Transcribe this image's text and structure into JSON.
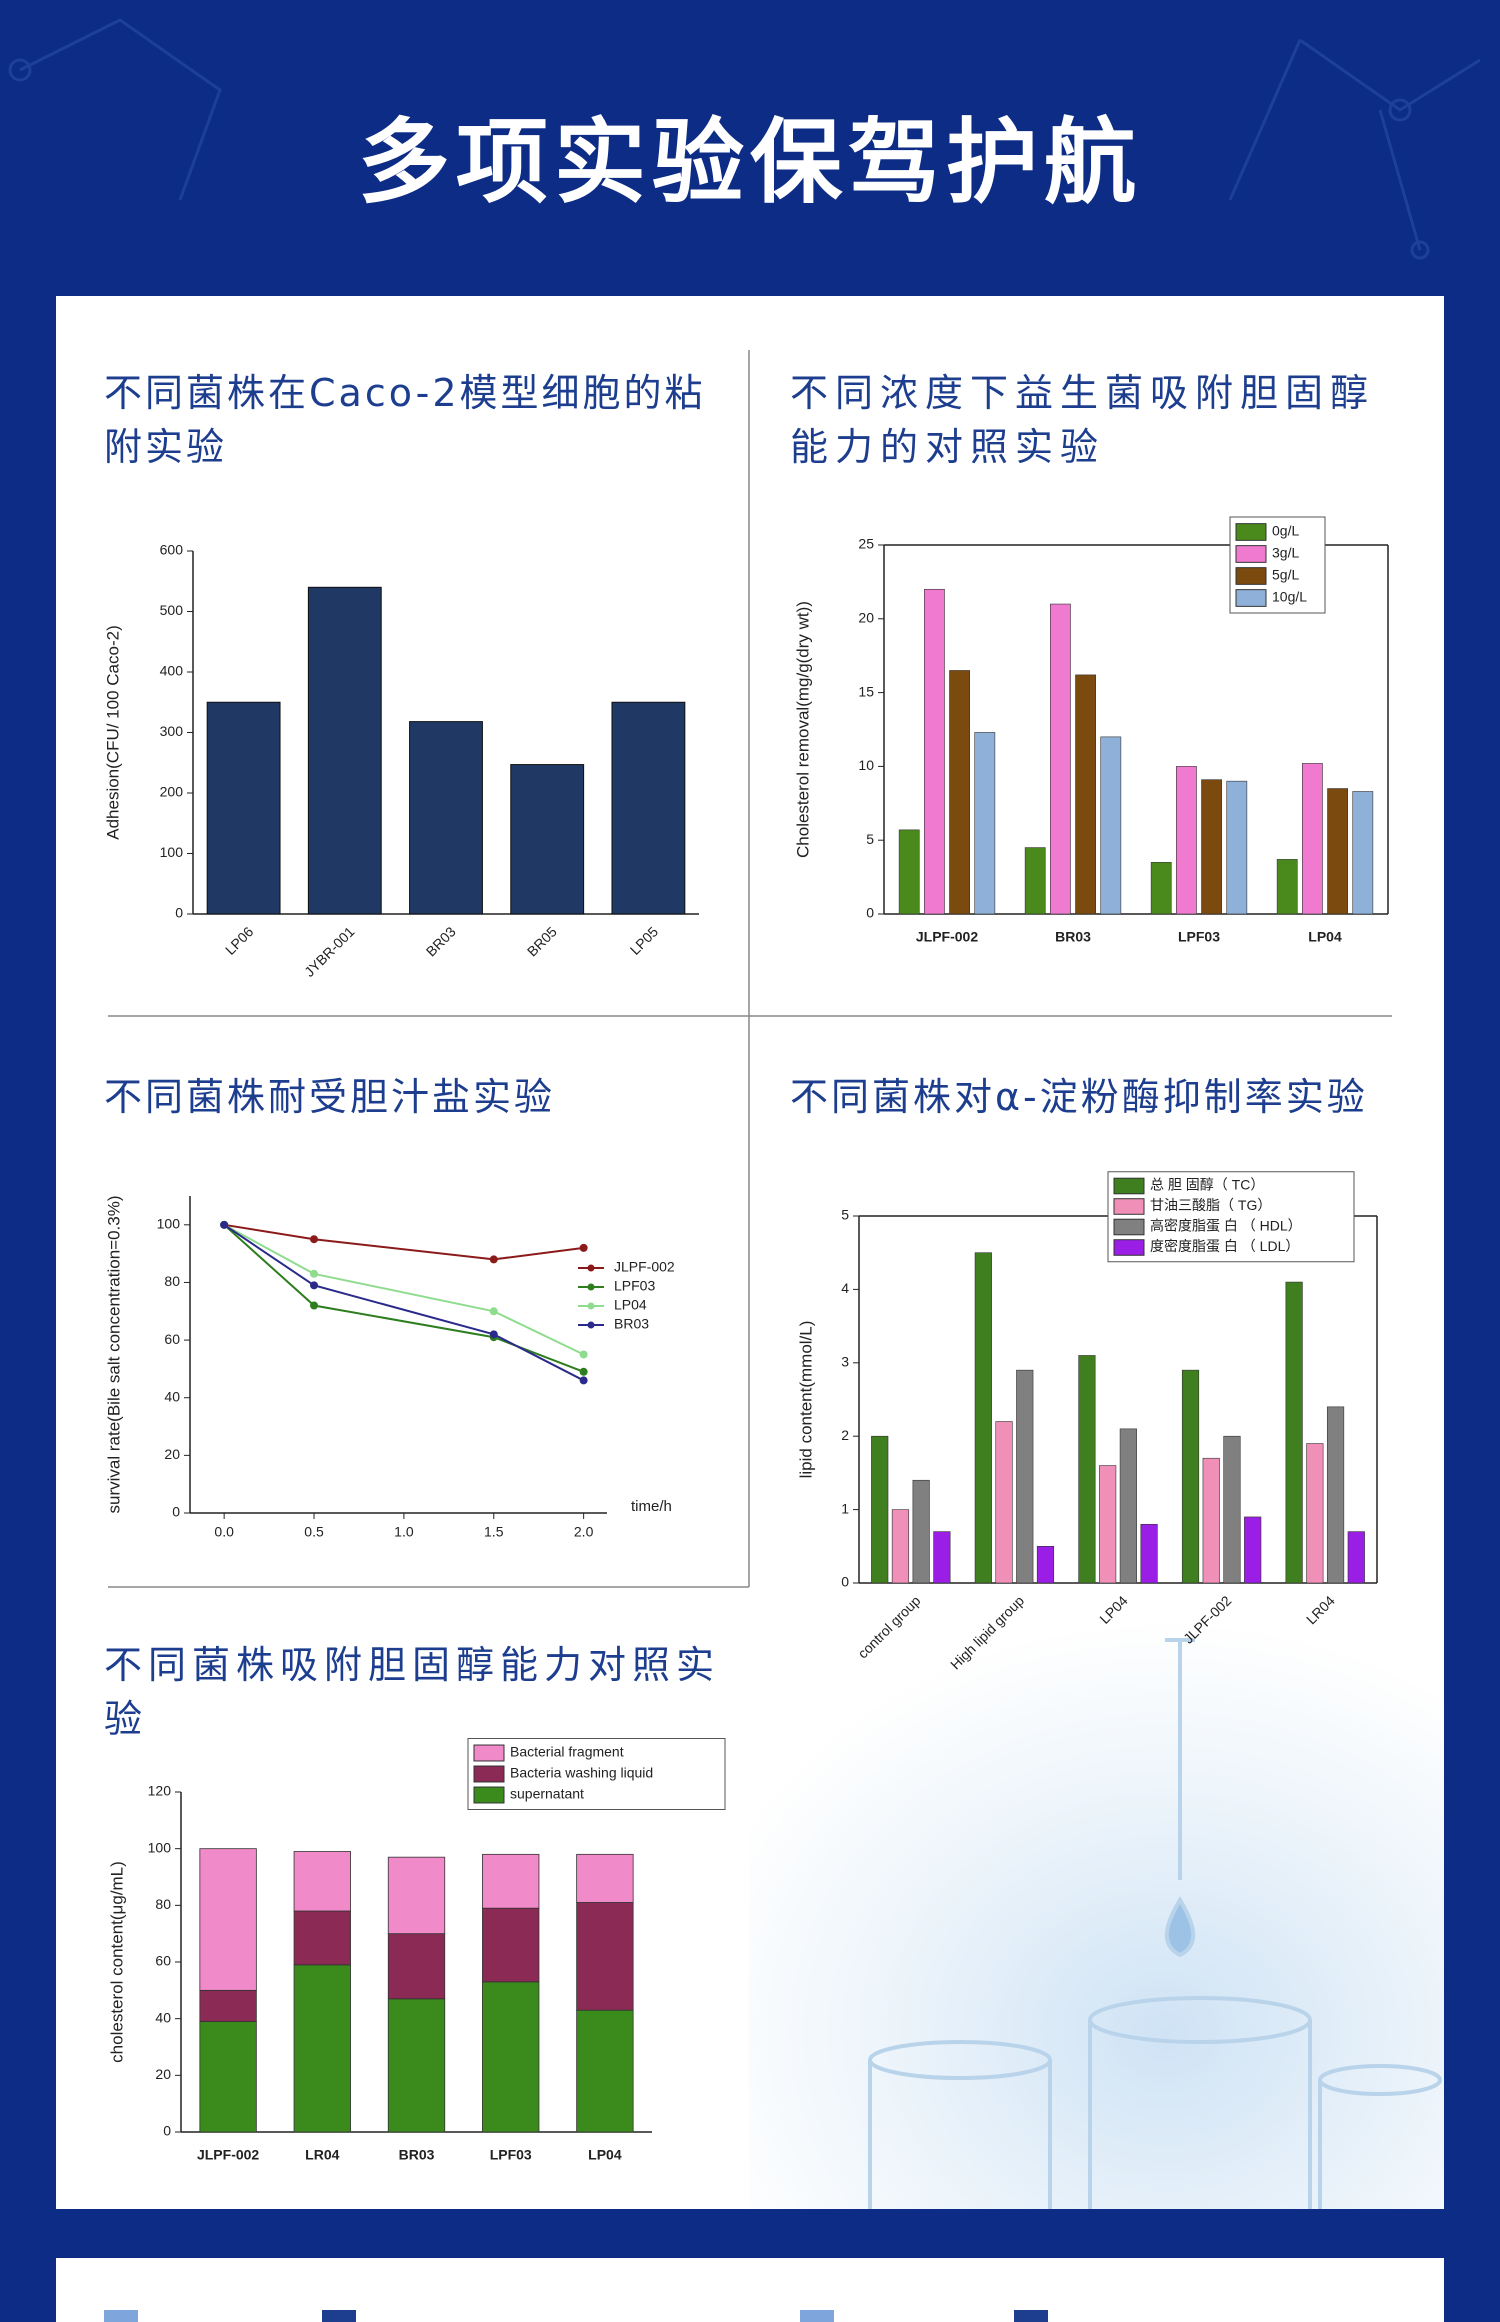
{
  "header": {
    "title": "多项实验保驾护航"
  },
  "chart_data": [
    {
      "type": "bar",
      "title": "不同菌株在Caco-2模型细胞的粘附实验",
      "ylabel": "Adhesion(CFU/ 100 Caco-2)",
      "categories": [
        "LP06",
        "JYBR-001",
        "BR03",
        "BR05",
        "LP05"
      ],
      "values": [
        350,
        540,
        318,
        247,
        350
      ],
      "color": "#1f3864",
      "ylim": [
        0,
        600
      ],
      "yticks": [
        0,
        100,
        200,
        300,
        400,
        500,
        600
      ]
    },
    {
      "type": "grouped",
      "title": "不同浓度下益生菌吸附胆固醇能力的对照实验",
      "ylabel": "Cholesterol removal(mg/g(dry wt))",
      "categories": [
        "JLPF-002",
        "BR03",
        "LPF03",
        "LP04"
      ],
      "series": [
        {
          "name": "0g/L",
          "color": "#4a8a1c",
          "values": [
            5.7,
            4.5,
            3.5,
            3.7
          ]
        },
        {
          "name": "3g/L",
          "color": "#f07ad0",
          "values": [
            22,
            21,
            10,
            10.2
          ]
        },
        {
          "name": "5g/L",
          "color": "#7a4a0e",
          "values": [
            16.5,
            16.2,
            9.1,
            8.5
          ]
        },
        {
          "name": "10g/L",
          "color": "#8fb0d8",
          "values": [
            12.3,
            12,
            9,
            8.3
          ]
        }
      ],
      "ylim": [
        0,
        25
      ],
      "yticks": [
        0,
        5,
        10,
        15,
        20,
        25
      ]
    },
    {
      "type": "line",
      "title": "不同菌株耐受胆汁盐实验",
      "ylabel": "survival rate(Bile salt concentration=0.3%)",
      "xlabel": "time/h",
      "x": [
        0,
        0.5,
        1.5,
        2.0
      ],
      "series": [
        {
          "name": "JLPF-002",
          "color": "#8b1a1a",
          "values": [
            100,
            95,
            88,
            92
          ]
        },
        {
          "name": "LPF03",
          "color": "#2e7d1e",
          "values": [
            100,
            72,
            61,
            49
          ]
        },
        {
          "name": "LP04",
          "color": "#8fdc8f",
          "values": [
            100,
            83,
            70,
            55
          ]
        },
        {
          "name": "BR03",
          "color": "#2a2a8a",
          "values": [
            100,
            79,
            62,
            46
          ]
        }
      ],
      "xlim": [
        -0.19,
        2.13
      ],
      "xticks": [
        {
          "value": 0,
          "label": "0.0"
        },
        0.5,
        {
          "value": 1,
          "label": "1.0"
        },
        1.5,
        {
          "value": 2,
          "label": "2.0"
        }
      ],
      "ylim": [
        0,
        110
      ],
      "yticks": [
        0,
        20,
        40,
        60,
        80,
        100
      ]
    },
    {
      "type": "grouped",
      "title": "不同菌株对α-淀粉酶抑制率实验",
      "ylabel": "lipid content(mmol/L)",
      "categories": [
        "control group",
        "High lipid group",
        "LP04",
        "JLPF-002",
        "LR04"
      ],
      "series": [
        {
          "name": "总 胆 固醇（ TC）",
          "color": "#3f7f1f",
          "values": [
            2.0,
            4.5,
            3.1,
            2.9,
            4.1
          ]
        },
        {
          "name": "甘油三酸脂（ TG）",
          "color": "#f090b8",
          "values": [
            1.0,
            2.2,
            1.6,
            1.7,
            1.9
          ]
        },
        {
          "name": "高密度脂蛋 白 （ HDL）",
          "color": "#808080",
          "values": [
            1.4,
            2.9,
            2.1,
            2.0,
            2.4
          ]
        },
        {
          "name": "度密度脂蛋 白 （ LDL）",
          "color": "#9b1ee6",
          "values": [
            0.7,
            0.5,
            0.8,
            0.9,
            0.7
          ]
        }
      ],
      "ylim": [
        0,
        5
      ],
      "yticks": [
        0,
        1,
        2,
        3,
        4,
        5
      ]
    },
    {
      "type": "stacked",
      "title": "不同菌株吸附胆固醇能力对照实验",
      "ylabel": "cholesterol content(μg/mL)",
      "categories": [
        "JLPF-002",
        "LR04",
        "BR03",
        "LPF03",
        "LP04"
      ],
      "series": [
        {
          "name": "supernatant",
          "color": "#3a8a1c",
          "values": [
            39,
            59,
            47,
            53,
            43
          ]
        },
        {
          "name": "Bacteria washing liquid",
          "color": "#8b2a55",
          "values": [
            11,
            19,
            23,
            26,
            38
          ]
        },
        {
          "name": "Bacterial fragment",
          "color": "#f08ac8",
          "values": [
            50,
            21,
            27,
            19,
            17
          ]
        }
      ],
      "ylim": [
        0,
        120
      ],
      "yticks": [
        0,
        20,
        40,
        60,
        80,
        100,
        120
      ]
    }
  ]
}
